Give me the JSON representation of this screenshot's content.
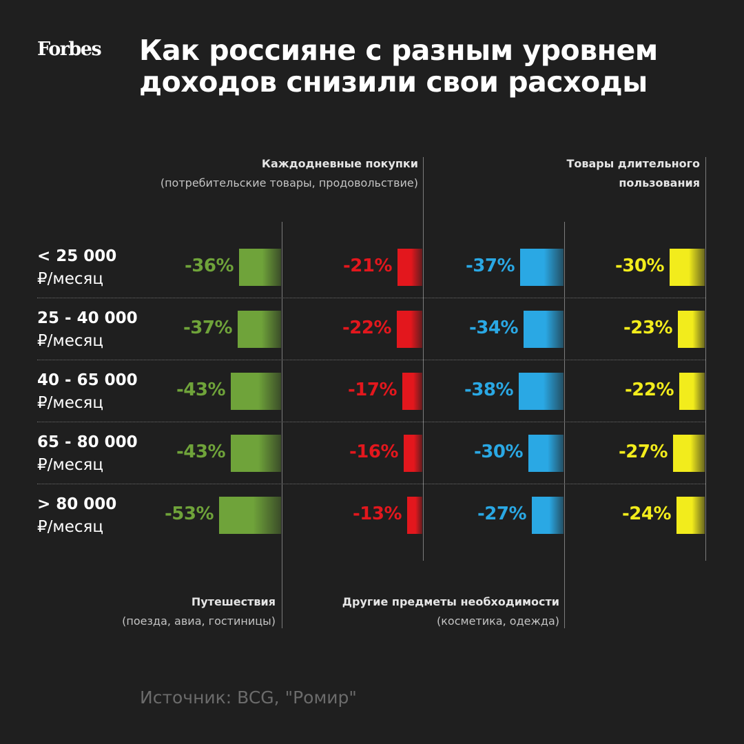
{
  "brand": "Forbes",
  "title_lines": [
    "Как россияне с разным уровнем",
    "доходов снизили свои расходы"
  ],
  "source": "Источник: BCG, \"Ромир\"",
  "chart_data": {
    "type": "bar",
    "categories": [
      "< 25 000",
      "25 - 40 000",
      "40 - 65 000",
      "65 - 80 000",
      "> 80 000"
    ],
    "category_unit": "₽/месяц",
    "series": [
      {
        "name": "Путешествия",
        "subtitle": "(поезда, авиа, гостиницы)",
        "color": "#6fa33a",
        "values": [
          -36,
          -37,
          -43,
          -43,
          -53
        ]
      },
      {
        "name": "Каждодневные покупки",
        "subtitle": "(потребительские товары, продовольствие)",
        "color": "#e3171d",
        "values": [
          -21,
          -22,
          -17,
          -16,
          -13
        ]
      },
      {
        "name": "Другие предметы необходимости",
        "subtitle": "(косметика, одежда)",
        "color": "#2aa8e4",
        "values": [
          -37,
          -34,
          -38,
          -30,
          -27
        ]
      },
      {
        "name": "Товары длительного",
        "subtitle": "пользования",
        "color": "#f2ec1c",
        "values": [
          -30,
          -23,
          -22,
          -27,
          -24
        ]
      }
    ],
    "value_format": "percent"
  }
}
